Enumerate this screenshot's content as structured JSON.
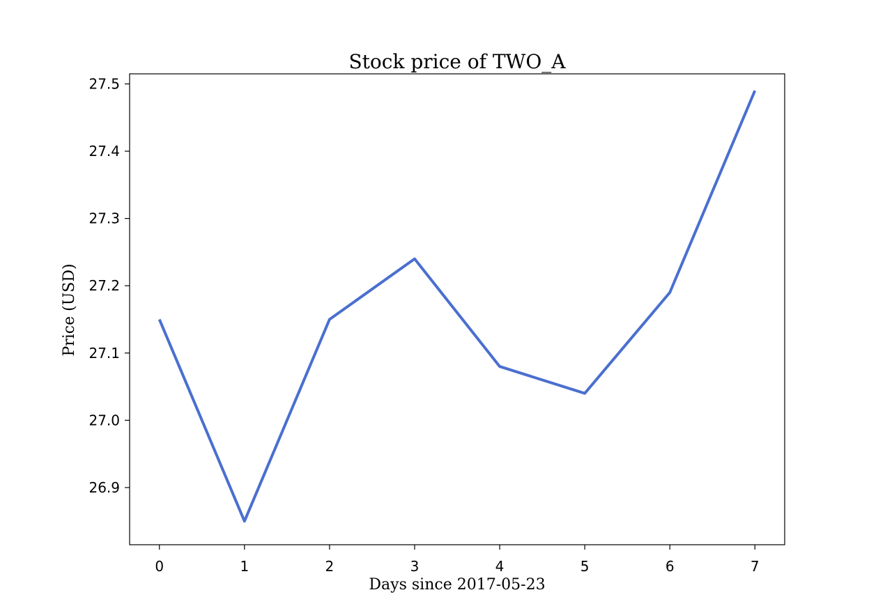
{
  "chart_data": {
    "type": "line",
    "title": "Stock price of TWO_A",
    "xlabel": "Days since 2017-05-23",
    "ylabel": "Price (USD)",
    "x": [
      0,
      1,
      2,
      3,
      4,
      5,
      6,
      7
    ],
    "series": [
      {
        "values": [
          27.15,
          26.85,
          27.15,
          27.24,
          27.08,
          27.04,
          27.19,
          27.49
        ]
      }
    ],
    "x_ticks": [
      "0",
      "1",
      "2",
      "3",
      "4",
      "5",
      "6",
      "7"
    ],
    "y_ticks": [
      "26.9",
      "27.0",
      "27.1",
      "27.2",
      "27.3",
      "27.4",
      "27.5"
    ],
    "xlim": [
      -0.35,
      7.35
    ],
    "ylim": [
      26.815,
      27.515
    ],
    "grid": false,
    "line_color": "#4a6fcf"
  }
}
